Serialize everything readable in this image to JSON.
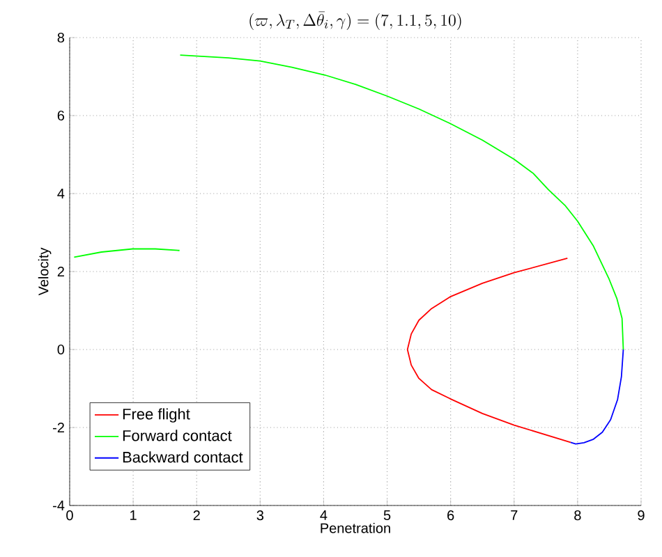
{
  "chart_data": {
    "type": "line",
    "title": "(\\varpi, \\lambda_T, \\Delta\\bar{\\theta}_i, \\gamma) = (7, 1.1, 5, 10)",
    "xlabel": "Penetration",
    "ylabel": "Velocity",
    "xlim": [
      0,
      9
    ],
    "ylim": [
      -4,
      8
    ],
    "xticks": [
      0,
      1,
      2,
      3,
      4,
      5,
      6,
      7,
      8,
      9
    ],
    "yticks": [
      -4,
      -2,
      0,
      2,
      4,
      6,
      8
    ],
    "grid": true,
    "legend": "bottom left",
    "line_style": "solid",
    "marker": "none",
    "series": [
      {
        "name": "Free flight",
        "color": "#ff0000",
        "x": [
          7.84,
          7.0,
          6.5,
          5.99,
          5.7,
          5.5,
          5.38,
          5.32,
          5.38,
          5.5,
          5.7,
          5.99,
          6.5,
          7.0,
          7.89
        ],
        "values": [
          2.34,
          1.97,
          1.7,
          1.35,
          1.05,
          0.75,
          0.4,
          0,
          -0.4,
          -0.74,
          -1.03,
          -1.26,
          -1.64,
          -1.94,
          -2.38
        ]
      },
      {
        "name": "Forward contact",
        "color": "#00ff00",
        "x": [
          0.07,
          0.5,
          0.99,
          1.35,
          1.73,
          null,
          1.74,
          2.5,
          3.0,
          3.5,
          4.02,
          4.5,
          5.0,
          5.5,
          5.99,
          6.5,
          7.0,
          7.3,
          7.54,
          7.8,
          8.0,
          8.25,
          8.49,
          8.62,
          8.7,
          8.72
        ],
        "values": [
          2.37,
          2.5,
          2.58,
          2.58,
          2.54,
          null,
          7.55,
          7.48,
          7.4,
          7.24,
          7.04,
          6.8,
          6.5,
          6.17,
          5.8,
          5.37,
          4.88,
          4.52,
          4.1,
          3.7,
          3.29,
          2.65,
          1.83,
          1.3,
          0.8,
          0
        ]
      },
      {
        "name": "Backward contact",
        "color": "#0000ff",
        "x": [
          7.89,
          7.97,
          8.1,
          8.25,
          8.39,
          8.52,
          8.63,
          8.69,
          8.72
        ],
        "values": [
          -2.38,
          -2.42,
          -2.39,
          -2.3,
          -2.12,
          -1.8,
          -1.28,
          -0.7,
          0
        ]
      }
    ]
  }
}
